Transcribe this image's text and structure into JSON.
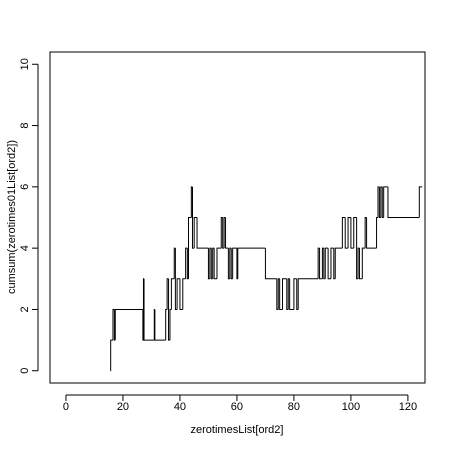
{
  "chart_data": {
    "type": "step",
    "xlabel": "zerotimesList[ord2]",
    "ylabel": "cumsum(zerotimes01List[ord2])",
    "color": "#000000",
    "xlim": [
      -5.6,
      126
    ],
    "ylim": [
      -0.4,
      10.4
    ],
    "xticks": [
      0,
      20,
      40,
      60,
      80,
      100,
      120
    ],
    "yticks": [
      0,
      2,
      4,
      6,
      8,
      10
    ],
    "x": [
      15.5,
      15.7,
      16.5,
      17,
      17.3,
      27,
      27.2,
      27.4,
      31,
      31.2,
      35,
      35.5,
      36,
      36.5,
      37,
      38,
      38.4,
      39,
      40,
      41,
      42,
      42.6,
      43,
      44,
      44.4,
      45,
      46,
      50,
      50.5,
      51,
      51.5,
      52,
      53,
      54.5,
      55,
      55.5,
      56,
      57,
      57.5,
      58,
      58.5,
      60,
      60.3,
      70,
      74,
      74.5,
      75,
      76,
      77.5,
      78,
      78.5,
      80,
      81,
      81.5,
      88.5,
      89,
      90,
      90.5,
      91,
      92,
      93,
      94,
      94.5,
      97,
      98,
      99,
      100,
      101,
      102,
      102.5,
      103,
      104,
      105,
      105.5,
      109,
      109.5,
      110,
      110.5,
      111,
      111.5,
      113,
      124,
      125
    ],
    "values": [
      0,
      1,
      2,
      1,
      2,
      1,
      3,
      1,
      2,
      1,
      2,
      3,
      1,
      2,
      3,
      4,
      2,
      3,
      2,
      3,
      4,
      3,
      5,
      6,
      4,
      5,
      4,
      3,
      4,
      3,
      4,
      3,
      4,
      5,
      4,
      5,
      4,
      3,
      4,
      3,
      4,
      3,
      4,
      3,
      2,
      3,
      2,
      3,
      2,
      3,
      2,
      3,
      2,
      3,
      4,
      3,
      4,
      3,
      4,
      3,
      4,
      3,
      4,
      5,
      4,
      5,
      4,
      5,
      3,
      4,
      3,
      4,
      5,
      4,
      5,
      6,
      5,
      6,
      5,
      6,
      5,
      6,
      6
    ]
  }
}
